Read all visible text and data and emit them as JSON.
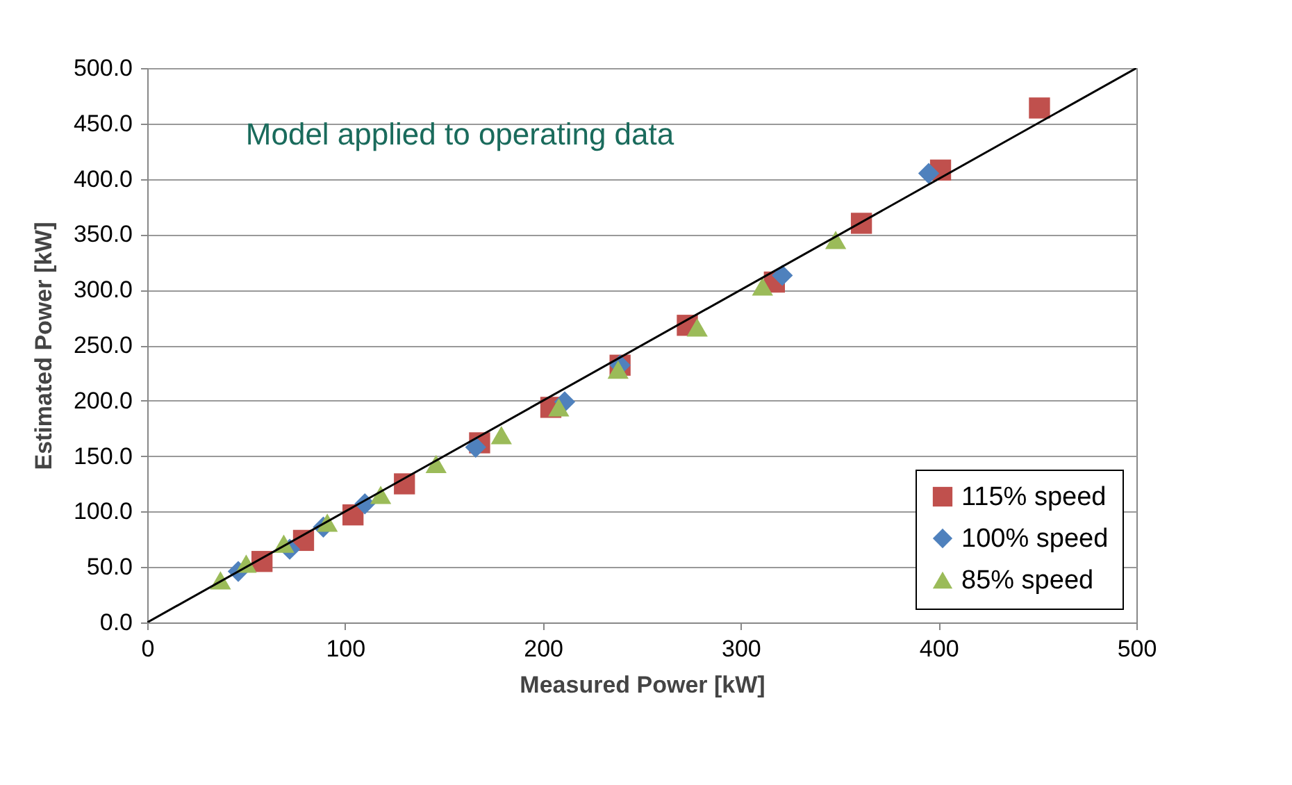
{
  "chart_data": {
    "type": "scatter",
    "xlabel": "Measured Power [kW]",
    "ylabel": "Estimated Power [kW]",
    "annotations": [
      "Model applied to operating data"
    ],
    "xlim": [
      0,
      500
    ],
    "xticks": [
      0,
      100,
      200,
      300,
      400,
      500
    ],
    "ylim": [
      0,
      500
    ],
    "yticks": [
      {
        "value": 0,
        "label": "0.0"
      },
      {
        "value": 50,
        "label": "50.0"
      },
      {
        "value": 100,
        "label": "100.0"
      },
      {
        "value": 150,
        "label": "150.0"
      },
      {
        "value": 200,
        "label": "200.0"
      },
      {
        "value": 250,
        "label": "250.0"
      },
      {
        "value": 300,
        "label": "300.0"
      },
      {
        "value": 350,
        "label": "350.0"
      },
      {
        "value": 400,
        "label": "400.0"
      },
      {
        "value": 450,
        "label": "450.0"
      },
      {
        "value": 500,
        "label": "500.0"
      }
    ],
    "grid": "y",
    "legend": "bottom right",
    "series": [
      {
        "name": "115% speed",
        "color": "#c0504d",
        "marker": "square",
        "x": [
          58,
          79,
          104,
          130,
          168,
          204,
          239,
          273,
          317,
          361,
          401,
          451
        ],
        "values": [
          55,
          74,
          97,
          125,
          162,
          194,
          232,
          268,
          307,
          360,
          408,
          464
        ]
      },
      {
        "name": "100% speed",
        "color": "#4f81bd",
        "marker": "diamond",
        "x": [
          46,
          72,
          89,
          110,
          166,
          211,
          239,
          321,
          395
        ],
        "values": [
          46,
          66,
          86,
          107,
          158,
          199,
          232,
          313,
          405
        ]
      },
      {
        "name": "85% speed",
        "color": "#9bbb59",
        "marker": "triangle",
        "x": [
          37,
          50,
          69,
          91,
          118,
          146,
          179,
          208,
          238,
          278,
          311,
          348
        ],
        "values": [
          38,
          53,
          71,
          90,
          115,
          143,
          169,
          194,
          228,
          266,
          303,
          345
        ]
      },
      {
        "type": "line",
        "color": "#000000",
        "x": [
          0,
          500
        ],
        "values": [
          0,
          500
        ]
      }
    ]
  }
}
